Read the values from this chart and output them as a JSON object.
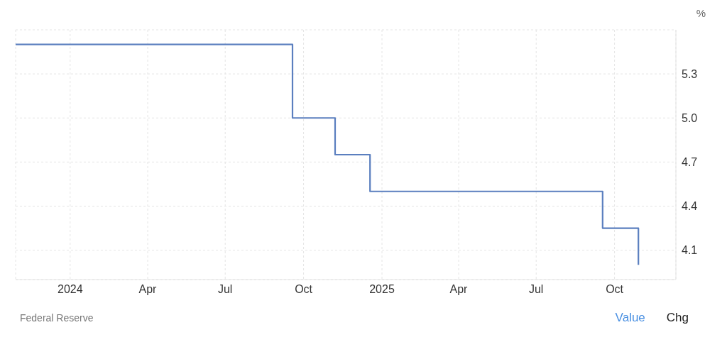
{
  "chart_data": {
    "type": "step",
    "ylabel": "%",
    "x": [
      "2023-10-29",
      "2024-09-18",
      "2024-11-07",
      "2024-12-18",
      "2025-09-17",
      "2025-10-29"
    ],
    "series": [
      {
        "color": "#5b7fbf",
        "values": [
          5.5,
          5.0,
          4.75,
          4.5,
          4.25,
          4.0
        ]
      }
    ],
    "xlim": [
      "2023-10-29",
      "2025-12-12"
    ],
    "xticks": [
      {
        "value": "2024-01-01",
        "label": "2024"
      },
      {
        "value": "2024-04-01",
        "label": "Apr"
      },
      {
        "value": "2024-07-01",
        "label": "Jul"
      },
      {
        "value": "2024-10-01",
        "label": "Oct"
      },
      {
        "value": "2025-01-01",
        "label": "2025"
      },
      {
        "value": "2025-04-01",
        "label": "Apr"
      },
      {
        "value": "2025-07-01",
        "label": "Jul"
      },
      {
        "value": "2025-10-01",
        "label": "Oct"
      }
    ],
    "ylim": [
      3.9,
      5.6
    ],
    "yticks": [
      4.1,
      4.4,
      4.7,
      {
        "value": 5,
        "label": "5.0"
      },
      5.3
    ],
    "grid": true,
    "marker": "none",
    "line_style": "solid",
    "annotations": [
      "Federal Reserve",
      "Value",
      "Chg"
    ]
  }
}
